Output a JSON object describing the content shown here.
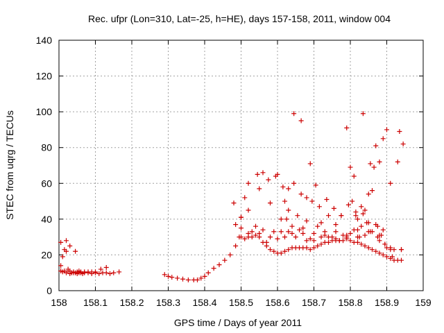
{
  "chart_data": {
    "type": "scatter",
    "title": "Rec. ufpr (Lon=310, Lat=-25, h=HE), days 157-158, 2011, window 004",
    "xlabel": "GPS time / Days of year 2011",
    "ylabel": "STEC from uqrg / TECUs",
    "xlim": [
      158,
      159
    ],
    "ylim": [
      0,
      140
    ],
    "xticks": [
      158,
      158.1,
      158.2,
      158.3,
      158.4,
      158.5,
      158.6,
      158.7,
      158.8,
      158.9,
      159
    ],
    "xtick_labels": [
      "158",
      "158.1",
      "158.2",
      "158.3",
      "158.4",
      "158.5",
      "158.6",
      "158.7",
      "158.8",
      "158.9",
      "159"
    ],
    "yticks": [
      0,
      20,
      40,
      60,
      80,
      100,
      120,
      140
    ],
    "ytick_labels": [
      "0",
      "20",
      "40",
      "60",
      "80",
      "100",
      "120",
      "140"
    ],
    "grid": true,
    "marker": "+",
    "color": "#cc0000",
    "x": [
      158.005,
      158.005,
      158.01,
      158.015,
      158.02,
      158.025,
      158.03,
      158.035,
      158.04,
      158.045,
      158.05,
      158.055,
      158.06,
      158.065,
      158.07,
      158.08,
      158.09,
      158.1,
      158.11,
      158.12,
      158.13,
      158.14,
      158.15,
      158.165,
      158.015,
      158.02,
      158.025,
      158.03,
      158.04,
      158.05,
      158.06,
      158.07,
      158.08,
      158.09,
      158.1,
      158.115,
      158.13,
      158.005,
      158.01,
      158.02,
      158.03,
      158.045,
      158.055,
      158.29,
      158.3,
      158.31,
      158.325,
      158.34,
      158.355,
      158.37,
      158.38,
      158.39,
      158.4,
      158.41,
      158.425,
      158.44,
      158.455,
      158.47,
      158.48,
      158.485,
      158.495,
      158.5,
      158.51,
      158.52,
      158.53,
      158.54,
      158.55,
      158.56,
      158.57,
      158.58,
      158.59,
      158.6,
      158.61,
      158.62,
      158.63,
      158.64,
      158.65,
      158.66,
      158.67,
      158.68,
      158.69,
      158.7,
      158.71,
      158.72,
      158.73,
      158.74,
      158.75,
      158.76,
      158.77,
      158.78,
      158.79,
      158.8,
      158.81,
      158.82,
      158.83,
      158.84,
      158.85,
      158.86,
      158.87,
      158.88,
      158.89,
      158.9,
      158.91,
      158.92,
      158.93,
      158.94,
      158.5,
      158.52,
      158.54,
      158.56,
      158.58,
      158.6,
      158.62,
      158.64,
      158.66,
      158.68,
      158.7,
      158.72,
      158.74,
      158.76,
      158.78,
      158.8,
      158.82,
      158.84,
      158.86,
      158.88,
      158.9,
      158.92,
      158.94,
      158.5,
      158.52,
      158.55,
      158.58,
      158.61,
      158.64,
      158.67,
      158.7,
      158.73,
      158.76,
      158.79,
      158.82,
      158.85,
      158.88,
      158.91,
      158.94,
      158.53,
      158.55,
      158.57,
      158.59,
      158.61,
      158.63,
      158.65,
      158.67,
      158.69,
      158.71,
      158.73,
      158.75,
      158.77,
      158.79,
      158.81,
      158.83,
      158.85,
      158.87,
      158.89,
      158.91,
      158.485,
      158.5,
      158.51,
      158.52,
      158.545,
      158.56,
      158.575,
      158.595,
      158.615,
      158.63,
      158.645,
      158.665,
      158.68,
      158.695,
      158.715,
      158.735,
      158.755,
      158.775,
      158.795,
      158.815,
      158.835,
      158.855,
      158.875,
      158.895,
      158.915,
      158.935,
      158.6,
      158.62,
      158.625,
      158.63,
      158.645,
      158.655,
      158.665,
      158.68,
      158.69,
      158.705,
      158.72,
      158.74,
      158.76,
      158.775,
      158.79,
      158.8,
      158.805,
      158.81,
      158.815,
      158.82,
      158.825,
      158.83,
      158.835,
      158.84,
      158.845,
      158.85,
      158.855,
      158.86,
      158.865,
      158.87,
      158.875,
      158.88,
      158.885,
      158.89,
      158.895,
      158.9,
      158.91,
      158.93,
      158.945
    ],
    "y": [
      11,
      14,
      10.5,
      11,
      10,
      11,
      9.5,
      10,
      10,
      10,
      9.5,
      10,
      10,
      9.5,
      10,
      10,
      9.5,
      10,
      9.5,
      10,
      10,
      9.5,
      10,
      10.5,
      23,
      28,
      12,
      11,
      10.5,
      10.5,
      10.5,
      10.5,
      10.5,
      10.5,
      10.5,
      12,
      13,
      27,
      19,
      22,
      25,
      22,
      11,
      9,
      8,
      7.5,
      7,
      6.5,
      6,
      6,
      6,
      7,
      8,
      10,
      12.5,
      14.5,
      17,
      20,
      49,
      25,
      30,
      30,
      29,
      30,
      30,
      31,
      32,
      27,
      25,
      23,
      22,
      21,
      21,
      22,
      23,
      24,
      24,
      24,
      24,
      24,
      23,
      24,
      25,
      26,
      27,
      27,
      28,
      28,
      28,
      28,
      29,
      28,
      27,
      27,
      26,
      25,
      24,
      23,
      22,
      21,
      20,
      19,
      18,
      17,
      17,
      17,
      41,
      32,
      36,
      34,
      30,
      29,
      30,
      32,
      34,
      28,
      28,
      30,
      30,
      29,
      31,
      32,
      30,
      31,
      33,
      28,
      24,
      23,
      23,
      35,
      45,
      57,
      49,
      40,
      36,
      35,
      32,
      31,
      33,
      31,
      34,
      33,
      31,
      23,
      23,
      33,
      30,
      27,
      33,
      33,
      33,
      30,
      32,
      29,
      36,
      33,
      30,
      28,
      30,
      34,
      36,
      38,
      37,
      34,
      24,
      37,
      41,
      52,
      60,
      65,
      66,
      62,
      64,
      58,
      57,
      60,
      54,
      52,
      50,
      47,
      51,
      46,
      42,
      48,
      44,
      43,
      33,
      30,
      26,
      19,
      89,
      65,
      50,
      40,
      45,
      99,
      42,
      95,
      39,
      71,
      59,
      38,
      42,
      37,
      42,
      91,
      69,
      50,
      64,
      42,
      40,
      30,
      47,
      99,
      45,
      38,
      54,
      71,
      56,
      69,
      81,
      36,
      72,
      31,
      85,
      26,
      90,
      60,
      72,
      82
    ]
  }
}
